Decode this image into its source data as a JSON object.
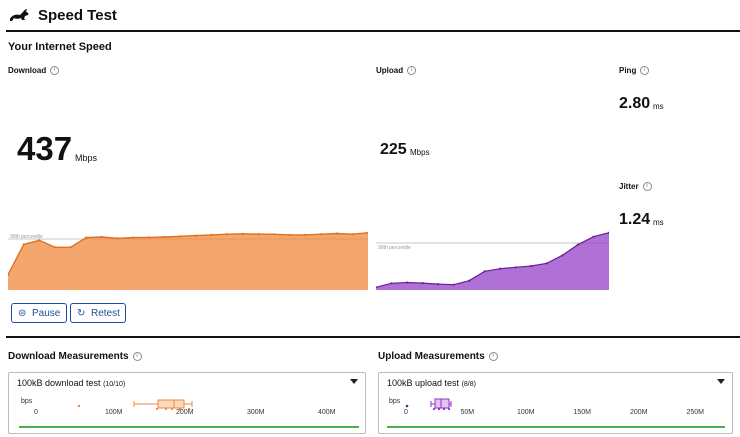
{
  "app": {
    "title": "Speed Test"
  },
  "section_title": "Your Internet Speed",
  "download": {
    "label": "Download",
    "value": "437",
    "unit": "Mbps"
  },
  "upload": {
    "label": "Upload",
    "value": "225",
    "unit": "Mbps"
  },
  "ping": {
    "label": "Ping",
    "value": "2.80",
    "unit": "ms"
  },
  "jitter": {
    "label": "Jitter",
    "value": "1.24",
    "unit": "ms"
  },
  "percentile_label": "90th percentile",
  "buttons": {
    "pause": "Pause",
    "retest": "Retest"
  },
  "measurements": {
    "download": {
      "title": "Download Measurements",
      "dropdown_main": "100kB download test",
      "dropdown_count": "(10/10)",
      "unit_label": "bps",
      "ticks": [
        "0",
        "100M",
        "200M",
        "300M",
        "400M"
      ]
    },
    "upload": {
      "title": "Upload Measurements",
      "dropdown_main": "100kB upload test",
      "dropdown_count": "(8/8)",
      "unit_label": "bps",
      "ticks": [
        "0",
        "50M",
        "100M",
        "150M",
        "200M",
        "250M"
      ]
    }
  },
  "colors": {
    "download": "#f0883e",
    "upload": "#8e35c4",
    "accent": "#1b4f9c",
    "baseline": "#4caf50"
  },
  "chart_data": [
    {
      "type": "area",
      "title": "Download",
      "ylabel": "Mbps",
      "reference_line": "90th percentile",
      "values": [
        110,
        330,
        360,
        310,
        310,
        380,
        385,
        375,
        380,
        382,
        385,
        390,
        395,
        400,
        405,
        408,
        406,
        404,
        400,
        400,
        405,
        410,
        405,
        415
      ],
      "ylim": [
        0,
        450
      ]
    },
    {
      "type": "area",
      "title": "Upload",
      "ylabel": "Mbps",
      "reference_line": "90th percentile",
      "values": [
        10,
        25,
        28,
        26,
        22,
        20,
        35,
        70,
        80,
        85,
        90,
        100,
        130,
        170,
        200,
        215
      ],
      "ylim": [
        0,
        225
      ]
    }
  ]
}
